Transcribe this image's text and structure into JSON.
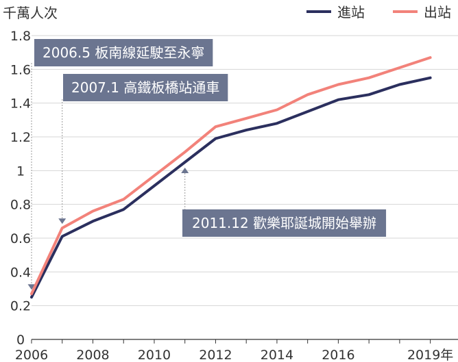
{
  "chart_data": {
    "type": "line",
    "ylabel": "千萬人次",
    "x": [
      2006,
      2007,
      2008,
      2009,
      2010,
      2011,
      2012,
      2013,
      2014,
      2015,
      2016,
      2017,
      2018,
      2019
    ],
    "x_tick_labels": [
      "2006",
      "2008",
      "2010",
      "2012",
      "2014",
      "2016",
      "2019年"
    ],
    "x_tick_values": [
      2006,
      2008,
      2010,
      2012,
      2014,
      2016,
      2019
    ],
    "y_tick_labels": [
      "0",
      "0.2",
      "0.4",
      "0.6",
      "0.8",
      "1",
      "1.2",
      "1.4",
      "1.6",
      "1.8"
    ],
    "y_tick_values": [
      0,
      0.2,
      0.4,
      0.6,
      0.8,
      1.0,
      1.2,
      1.4,
      1.6,
      1.8
    ],
    "xlim": [
      2006,
      2019.5
    ],
    "ylim": [
      0,
      1.8
    ],
    "grid": "horizontal",
    "legend_position": "top-right",
    "series": [
      {
        "name": "進站",
        "color": "#2b2f5e",
        "values": [
          0.25,
          0.61,
          0.7,
          0.77,
          0.91,
          1.05,
          1.19,
          1.24,
          1.28,
          1.35,
          1.42,
          1.45,
          1.51,
          1.55
        ]
      },
      {
        "name": "出站",
        "color": "#f2827a",
        "values": [
          0.27,
          0.66,
          0.76,
          0.83,
          0.97,
          1.11,
          1.26,
          1.31,
          1.36,
          1.45,
          1.51,
          1.55,
          1.61,
          1.67
        ]
      }
    ],
    "annotations": [
      {
        "text": "2006.5 板南線延駛至永寧",
        "x": 2006
      },
      {
        "text": "2007.1 高鐵板橋站通車",
        "x": 2007
      },
      {
        "text": "2011.12 歡樂耶誕城開始舉辦",
        "x": 2011
      }
    ],
    "annotation_color": "#6b7590"
  }
}
